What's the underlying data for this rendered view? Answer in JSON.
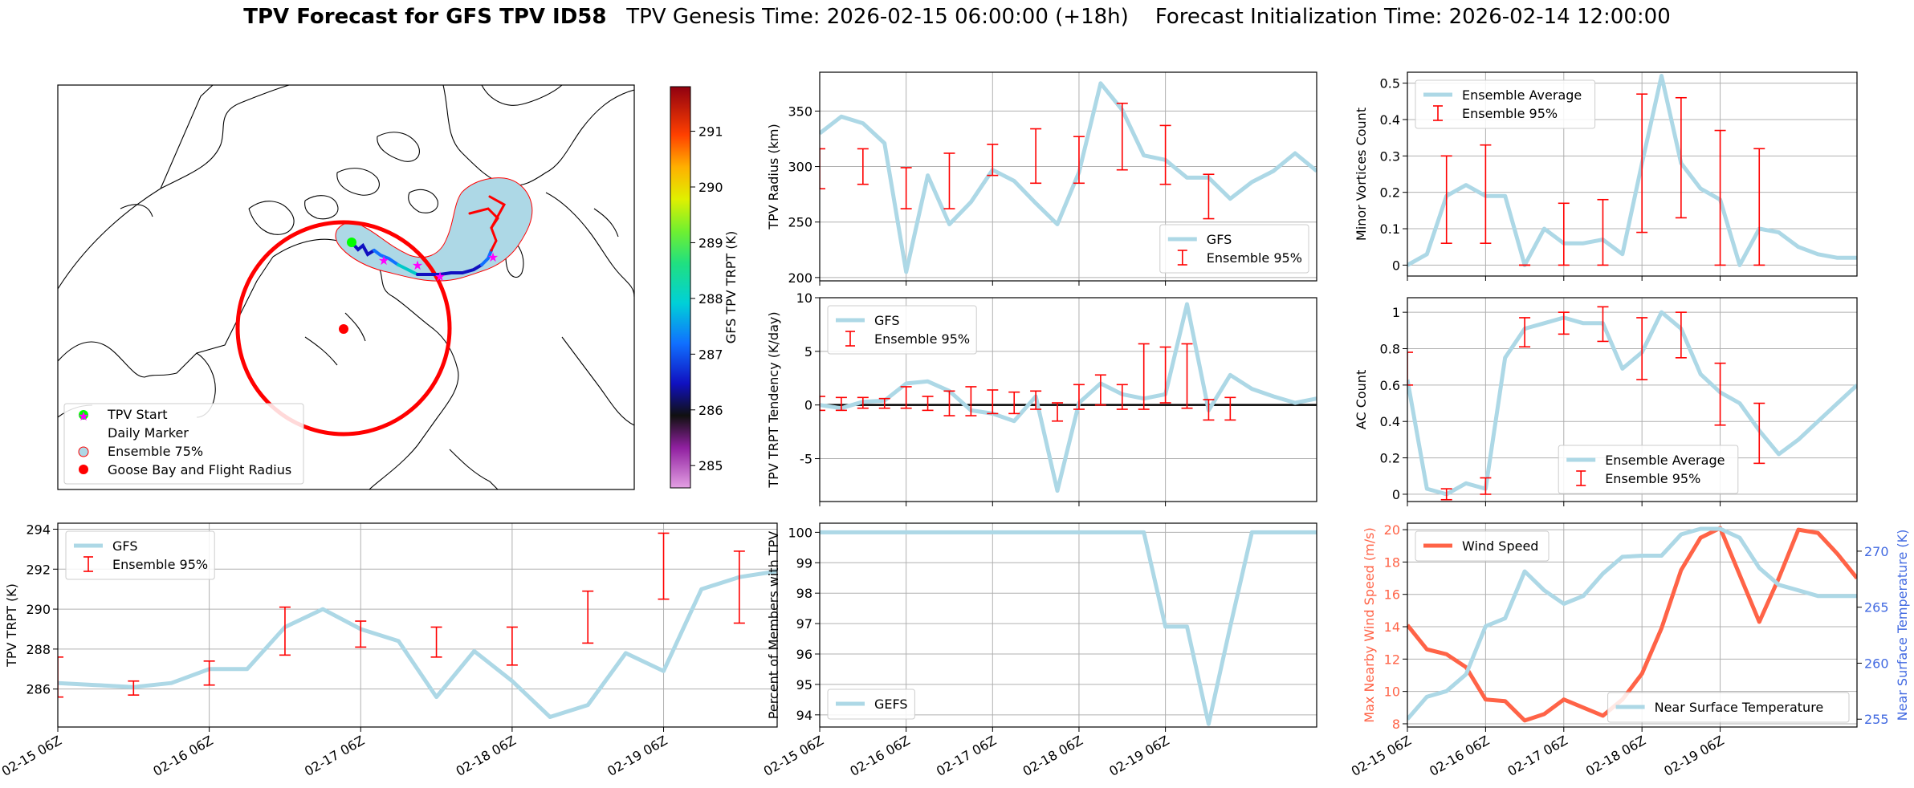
{
  "header": {
    "title_bold": "TPV Forecast for GFS TPV ID58",
    "title_genesis": "TPV Genesis Time: 2026-02-15 06:00:00 (+18h)",
    "title_init": "Forecast Initialization Time: 2026-02-14 12:00:00"
  },
  "colors": {
    "gfs_line": "#add8e6",
    "ensemble_err": "#ff0000",
    "wind": "#ff6347",
    "temp_axis": "#4169e1",
    "tpv_start": "#00ff00",
    "daily_marker": "#ff00ff",
    "goose_bay": "#ff0000"
  },
  "map": {
    "colorbar_label": "GFS TPV TRPT (K)",
    "colorbar_ticks": [
      "291",
      "290",
      "289",
      "288",
      "287",
      "286",
      "285"
    ],
    "colorbar_range": [
      284.6,
      291.8
    ],
    "legend": [
      "TPV Start",
      "Daily Marker",
      "Ensemble 75%",
      "Goose Bay and Flight Radius"
    ]
  },
  "time_ticks": [
    "02-15 06Z",
    "02-16 06Z",
    "02-17 06Z",
    "02-18 06Z",
    "02-19 06Z"
  ],
  "chart_data": [
    {
      "id": "radius",
      "type": "line",
      "ylabel": "TPV Radius (km)",
      "xlim": [
        0,
        23
      ],
      "ylim": [
        197,
        385
      ],
      "yticks": [
        200,
        250,
        300,
        350
      ],
      "legend": [
        "GFS",
        "Ensemble 95%"
      ],
      "legend_loc": "lower right",
      "series": [
        {
          "name": "GFS",
          "x": [
            0,
            1,
            2,
            3,
            4,
            5,
            6,
            7,
            8,
            9,
            10,
            11,
            12,
            13,
            14,
            15,
            16,
            17,
            18,
            19,
            20,
            21,
            22,
            23
          ],
          "values": [
            330,
            345,
            339,
            321,
            205,
            292,
            248,
            268,
            297,
            287,
            267,
            248,
            295,
            375,
            351,
            310,
            306,
            290,
            290,
            271,
            286,
            296,
            312,
            296
          ]
        }
      ],
      "errorbars": [
        {
          "x": 0,
          "low": 280,
          "high": 316
        },
        {
          "x": 2,
          "low": 284,
          "high": 316
        },
        {
          "x": 4,
          "low": 262,
          "high": 299
        },
        {
          "x": 6,
          "low": 262,
          "high": 312
        },
        {
          "x": 8,
          "low": 292,
          "high": 320
        },
        {
          "x": 10,
          "low": 285,
          "high": 334
        },
        {
          "x": 12,
          "low": 285,
          "high": 327
        },
        {
          "x": 14,
          "low": 297,
          "high": 357
        },
        {
          "x": 16,
          "low": 284,
          "high": 337
        },
        {
          "x": 18,
          "low": 253,
          "high": 293
        }
      ]
    },
    {
      "id": "tendency",
      "type": "line",
      "ylabel": "TPV TRPT Tendency (K/day)",
      "xlim": [
        0,
        23
      ],
      "ylim": [
        -9,
        10
      ],
      "yticks": [
        -5,
        0,
        5,
        10
      ],
      "hline": 0,
      "legend": [
        "GFS",
        "Ensemble 95%"
      ],
      "legend_loc": "upper left",
      "series": [
        {
          "name": "GFS",
          "x": [
            0,
            1,
            2,
            3,
            4,
            5,
            6,
            7,
            8,
            9,
            10,
            11,
            12,
            13,
            14,
            15,
            16,
            17,
            18,
            19,
            20,
            21,
            22,
            23
          ],
          "values": [
            0,
            -0.3,
            0.3,
            0.4,
            2.0,
            2.2,
            1.3,
            -0.5,
            -0.8,
            -1.5,
            0.8,
            -8.0,
            0.2,
            2.0,
            1.0,
            0.6,
            1.0,
            9.4,
            -0.5,
            2.8,
            1.5,
            0.8,
            0.2,
            0.6
          ]
        }
      ],
      "errorbars": [
        {
          "x": 0,
          "low": -0.5,
          "high": 0.8
        },
        {
          "x": 1,
          "low": -0.5,
          "high": 0.7
        },
        {
          "x": 2,
          "low": -0.3,
          "high": 0.7
        },
        {
          "x": 3,
          "low": -0.3,
          "high": 0.6
        },
        {
          "x": 4,
          "low": -0.3,
          "high": 1.7
        },
        {
          "x": 5,
          "low": -0.5,
          "high": 0.8
        },
        {
          "x": 6,
          "low": -1.0,
          "high": 1.3
        },
        {
          "x": 7,
          "low": -1.0,
          "high": 1.7
        },
        {
          "x": 8,
          "low": -0.8,
          "high": 1.4
        },
        {
          "x": 9,
          "low": -0.8,
          "high": 1.2
        },
        {
          "x": 10,
          "low": -0.4,
          "high": 1.3
        },
        {
          "x": 11,
          "low": -1.5,
          "high": 0.2
        },
        {
          "x": 12,
          "low": -0.4,
          "high": 1.9
        },
        {
          "x": 13,
          "low": 0,
          "high": 2.8
        },
        {
          "x": 14,
          "low": -0.4,
          "high": 1.9
        },
        {
          "x": 15,
          "low": -0.4,
          "high": 5.7
        },
        {
          "x": 16,
          "low": 0.2,
          "high": 5.4
        },
        {
          "x": 17,
          "low": -0.3,
          "high": 5.7
        },
        {
          "x": 18,
          "low": -1.4,
          "high": 0.5
        },
        {
          "x": 19,
          "low": -1.4,
          "high": 0.7
        }
      ]
    },
    {
      "id": "trpt",
      "type": "line",
      "ylabel": "TPV TRPT (K)",
      "xlim": [
        0,
        19
      ],
      "ylim": [
        284.1,
        294.3
      ],
      "yticks": [
        286,
        288,
        290,
        292,
        294
      ],
      "legend": [
        "GFS",
        "Ensemble 95%"
      ],
      "legend_loc": "upper left",
      "series": [
        {
          "name": "GFS",
          "x": [
            0,
            1,
            2,
            3,
            4,
            5,
            6,
            7,
            8,
            9,
            10,
            11,
            12,
            13,
            14,
            15,
            16,
            17,
            18,
            19
          ],
          "values": [
            286.3,
            286.2,
            286.1,
            286.3,
            287.0,
            287.0,
            289.1,
            290.0,
            289.0,
            288.4,
            285.6,
            287.9,
            286.4,
            284.6,
            285.2,
            287.8,
            286.9,
            291.0,
            291.6,
            291.9
          ]
        }
      ],
      "errorbars": [
        {
          "x": 0,
          "low": 285.6,
          "high": 287.6
        },
        {
          "x": 2,
          "low": 285.7,
          "high": 286.4
        },
        {
          "x": 4,
          "low": 286.2,
          "high": 287.4
        },
        {
          "x": 6,
          "low": 287.7,
          "high": 290.1
        },
        {
          "x": 8,
          "low": 288.1,
          "high": 289.4
        },
        {
          "x": 10,
          "low": 287.6,
          "high": 289.1
        },
        {
          "x": 12,
          "low": 287.2,
          "high": 289.1
        },
        {
          "x": 14,
          "low": 288.3,
          "high": 290.9
        },
        {
          "x": 16,
          "low": 290.5,
          "high": 293.8
        },
        {
          "x": 18,
          "low": 289.3,
          "high": 292.9
        }
      ]
    },
    {
      "id": "members",
      "type": "line",
      "ylabel": "Percent of Members with TPV",
      "xlim": [
        0,
        23
      ],
      "ylim": [
        93.6,
        100.3
      ],
      "yticks": [
        94,
        95,
        96,
        97,
        98,
        99,
        100
      ],
      "legend": [
        "GEFS"
      ],
      "legend_loc": "lower left",
      "series": [
        {
          "name": "GEFS",
          "x": [
            0,
            1,
            2,
            3,
            4,
            5,
            6,
            7,
            8,
            9,
            10,
            11,
            12,
            13,
            14,
            15,
            16,
            17,
            18,
            19,
            20,
            21,
            22,
            23
          ],
          "values": [
            100,
            100,
            100,
            100,
            100,
            100,
            100,
            100,
            100,
            100,
            100,
            100,
            100,
            100,
            100,
            100,
            96.9,
            96.9,
            93.7,
            96.9,
            100,
            100,
            100,
            100
          ]
        }
      ],
      "errorbars": []
    },
    {
      "id": "minor",
      "type": "line",
      "ylabel": "Minor Vortices Count",
      "xlim": [
        0,
        23
      ],
      "ylim": [
        -0.03,
        0.53
      ],
      "yticks": [
        0.0,
        0.1,
        0.2,
        0.3,
        0.4,
        0.5
      ],
      "legend": [
        "Ensemble Average",
        "Ensemble 95%"
      ],
      "legend_loc": "upper left",
      "series": [
        {
          "name": "Ensemble Average",
          "x": [
            0,
            1,
            2,
            3,
            4,
            5,
            6,
            7,
            8,
            9,
            10,
            11,
            12,
            13,
            14,
            15,
            16,
            17,
            18,
            19,
            20,
            21,
            22,
            23
          ],
          "values": [
            0,
            0.03,
            0.19,
            0.22,
            0.19,
            0.19,
            0,
            0.1,
            0.06,
            0.06,
            0.07,
            0.03,
            0.28,
            0.52,
            0.28,
            0.21,
            0.18,
            0,
            0.1,
            0.09,
            0.05,
            0.03,
            0.02,
            0.02
          ]
        }
      ],
      "errorbars": [
        {
          "x": 2,
          "low": 0.06,
          "high": 0.3
        },
        {
          "x": 4,
          "low": 0.06,
          "high": 0.33
        },
        {
          "x": 6,
          "low": 0,
          "high": 0
        },
        {
          "x": 8,
          "low": 0,
          "high": 0.17
        },
        {
          "x": 10,
          "low": 0,
          "high": 0.18
        },
        {
          "x": 12,
          "low": 0.09,
          "high": 0.47
        },
        {
          "x": 14,
          "low": 0.13,
          "high": 0.46
        },
        {
          "x": 16,
          "low": 0,
          "high": 0.37
        },
        {
          "x": 18,
          "low": 0,
          "high": 0.32
        }
      ]
    },
    {
      "id": "ac",
      "type": "line",
      "ylabel": "AC Count",
      "xlim": [
        0,
        23
      ],
      "ylim": [
        -0.04,
        1.08
      ],
      "yticks": [
        0.0,
        0.2,
        0.4,
        0.6,
        0.8,
        1.0
      ],
      "legend": [
        "Ensemble Average",
        "Ensemble 95%"
      ],
      "legend_loc": "lower center",
      "series": [
        {
          "name": "Ensemble Average",
          "x": [
            0,
            1,
            2,
            3,
            4,
            5,
            6,
            7,
            8,
            9,
            10,
            11,
            12,
            13,
            14,
            15,
            16,
            17,
            18,
            19,
            20,
            21,
            22,
            23
          ],
          "values": [
            0.63,
            0.03,
            0,
            0.06,
            0.03,
            0.75,
            0.91,
            0.94,
            0.97,
            0.94,
            0.94,
            0.69,
            0.78,
            1.0,
            0.91,
            0.66,
            0.56,
            0.5,
            0.35,
            0.22,
            0.3,
            0.4,
            0.5,
            0.6
          ]
        }
      ],
      "errorbars": [
        {
          "x": 0,
          "low": 0.6,
          "high": 0.78
        },
        {
          "x": 2,
          "low": -0.03,
          "high": 0.03
        },
        {
          "x": 4,
          "low": 0,
          "high": 0.09
        },
        {
          "x": 6,
          "low": 0.81,
          "high": 0.97
        },
        {
          "x": 8,
          "low": 0.88,
          "high": 1.0
        },
        {
          "x": 10,
          "low": 0.84,
          "high": 1.03
        },
        {
          "x": 12,
          "low": 0.63,
          "high": 0.97
        },
        {
          "x": 14,
          "low": 0.75,
          "high": 1.0
        },
        {
          "x": 16,
          "low": 0.38,
          "high": 0.72
        },
        {
          "x": 18,
          "low": 0.17,
          "high": 0.5
        }
      ]
    },
    {
      "id": "wind",
      "type": "line",
      "ylabel": "Max Nearby Wind Speed (m/s)",
      "ylabel2": "Near Surface Temperature (K)",
      "xlim": [
        0,
        23
      ],
      "ylim": [
        7.8,
        20.4
      ],
      "yticks": [
        8,
        10,
        12,
        14,
        16,
        18,
        20
      ],
      "ylim2": [
        254.3,
        272.5
      ],
      "yticks2": [
        255,
        260,
        265,
        270
      ],
      "legend": [
        "Wind Speed"
      ],
      "legend2": [
        "Near Surface Temperature"
      ],
      "series": [
        {
          "name": "Wind Speed",
          "axis": "left",
          "x": [
            0,
            1,
            2,
            3,
            4,
            5,
            6,
            7,
            8,
            9,
            10,
            11,
            12,
            13,
            14,
            15,
            16,
            17,
            18,
            19,
            20,
            21,
            22,
            23
          ],
          "values": [
            14.1,
            12.6,
            12.3,
            11.5,
            9.5,
            9.4,
            8.2,
            8.6,
            9.5,
            9.0,
            8.5,
            9.5,
            11.1,
            13.9,
            17.5,
            19.5,
            20.1,
            17.2,
            14.3,
            17.0,
            20.0,
            19.8,
            18.5,
            17.0
          ]
        },
        {
          "name": "Near Surface Temperature",
          "axis": "right",
          "x": [
            0,
            1,
            2,
            3,
            4,
            5,
            6,
            7,
            8,
            9,
            10,
            11,
            12,
            13,
            14,
            15,
            16,
            17,
            18,
            19,
            20,
            21,
            22,
            23
          ],
          "values": [
            255.0,
            257.0,
            257.5,
            259.0,
            263.3,
            264.0,
            268.2,
            266.5,
            265.3,
            266.0,
            268.0,
            269.5,
            269.6,
            269.6,
            271.5,
            272.0,
            272.0,
            271.2,
            268.5,
            267.0,
            266.5,
            266.0,
            266.0,
            266.0
          ]
        }
      ],
      "errorbars": []
    }
  ]
}
